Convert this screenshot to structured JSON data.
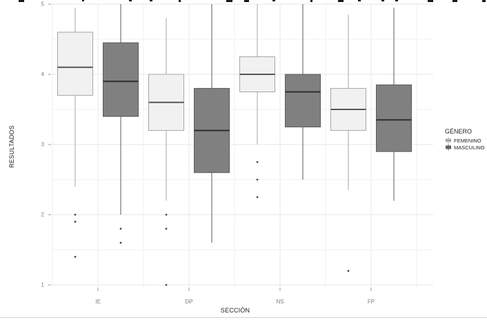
{
  "page": {
    "clipped_caption": {
      "note": "cut-off text line at top edge; only bottom pixels of glyphs visible (illegible)",
      "fragments": [
        [
          27,
          8,
          3
        ],
        [
          119,
          3,
          2
        ],
        [
          187,
          4,
          2
        ],
        [
          217,
          4,
          2
        ],
        [
          259,
          3,
          3
        ],
        [
          328,
          9,
          3
        ],
        [
          354,
          7,
          3
        ],
        [
          395,
          4,
          2
        ],
        [
          450,
          3,
          3
        ],
        [
          490,
          8,
          3
        ],
        [
          519,
          4,
          2
        ],
        [
          553,
          4,
          2
        ],
        [
          573,
          4,
          2
        ],
        [
          620,
          8,
          3
        ],
        [
          656,
          7,
          3
        ],
        [
          699,
          5,
          3
        ]
      ]
    },
    "bottom_border_color": "#ccd3d9"
  },
  "chart_data": {
    "type": "boxplot",
    "title": "",
    "xlabel": "SECCIÓN",
    "ylabel": "RESULTADOS",
    "categories": [
      "IE",
      "DP",
      "NS",
      "FP"
    ],
    "y_ticks": [
      1,
      2,
      3,
      4,
      5
    ],
    "ylim": [
      1,
      5
    ],
    "grid": {
      "major_horizontal": true,
      "minor_horizontal": true,
      "major_vertical": true,
      "minor_vertical": true
    },
    "grid_colors": {
      "major": "#e4e4e4",
      "minor": "#f2f2f2"
    },
    "axis_text_color": "#7d7d7d",
    "axis_title_color": "#1f1f1f",
    "outlier_color": "#4a4a4a",
    "legend": {
      "title": "GÉNERO",
      "position": "right",
      "entries": [
        {
          "label": "FEMENINO",
          "fill": "#f1f1f1",
          "stroke": "#a6a6a6"
        },
        {
          "label": "MASCULINO",
          "fill": "#808080",
          "stroke": "#595959"
        }
      ]
    },
    "series": [
      {
        "name": "FEMENINO",
        "fill": "#f1f1f1",
        "stroke": "#a6a6a6",
        "median_color": "#555555",
        "boxes": [
          {
            "category": "IE",
            "whisker_low": 2.4,
            "q1": 3.7,
            "median": 4.1,
            "q3": 4.6,
            "whisker_high": 4.95,
            "outliers": [
              2.0,
              1.9,
              1.4
            ]
          },
          {
            "category": "DP",
            "whisker_low": 2.2,
            "q1": 3.2,
            "median": 3.6,
            "q3": 4.0,
            "whisker_high": 4.8,
            "outliers": [
              2.0,
              1.8,
              1.0
            ]
          },
          {
            "category": "NS",
            "whisker_low": 3.0,
            "q1": 3.75,
            "median": 4.0,
            "q3": 4.25,
            "whisker_high": 5.0,
            "outliers": [
              2.75,
              2.5,
              2.25
            ]
          },
          {
            "category": "FP",
            "whisker_low": 2.35,
            "q1": 3.2,
            "median": 3.5,
            "q3": 3.8,
            "whisker_high": 4.85,
            "outliers": [
              1.2
            ]
          }
        ]
      },
      {
        "name": "MASCULINO",
        "fill": "#808080",
        "stroke": "#595959",
        "median_color": "#2e2e2e",
        "boxes": [
          {
            "category": "IE",
            "whisker_low": 2.0,
            "q1": 3.4,
            "median": 3.9,
            "q3": 4.45,
            "whisker_high": 5.0,
            "outliers": [
              1.8,
              1.6
            ]
          },
          {
            "category": "DP",
            "whisker_low": 1.6,
            "q1": 2.6,
            "median": 3.2,
            "q3": 3.8,
            "whisker_high": 5.0,
            "outliers": []
          },
          {
            "category": "NS",
            "whisker_low": 2.5,
            "q1": 3.25,
            "median": 3.75,
            "q3": 4.0,
            "whisker_high": 5.0,
            "outliers": []
          },
          {
            "category": "FP",
            "whisker_low": 2.2,
            "q1": 2.9,
            "median": 3.35,
            "q3": 3.85,
            "whisker_high": 4.95,
            "outliers": []
          }
        ]
      }
    ]
  }
}
